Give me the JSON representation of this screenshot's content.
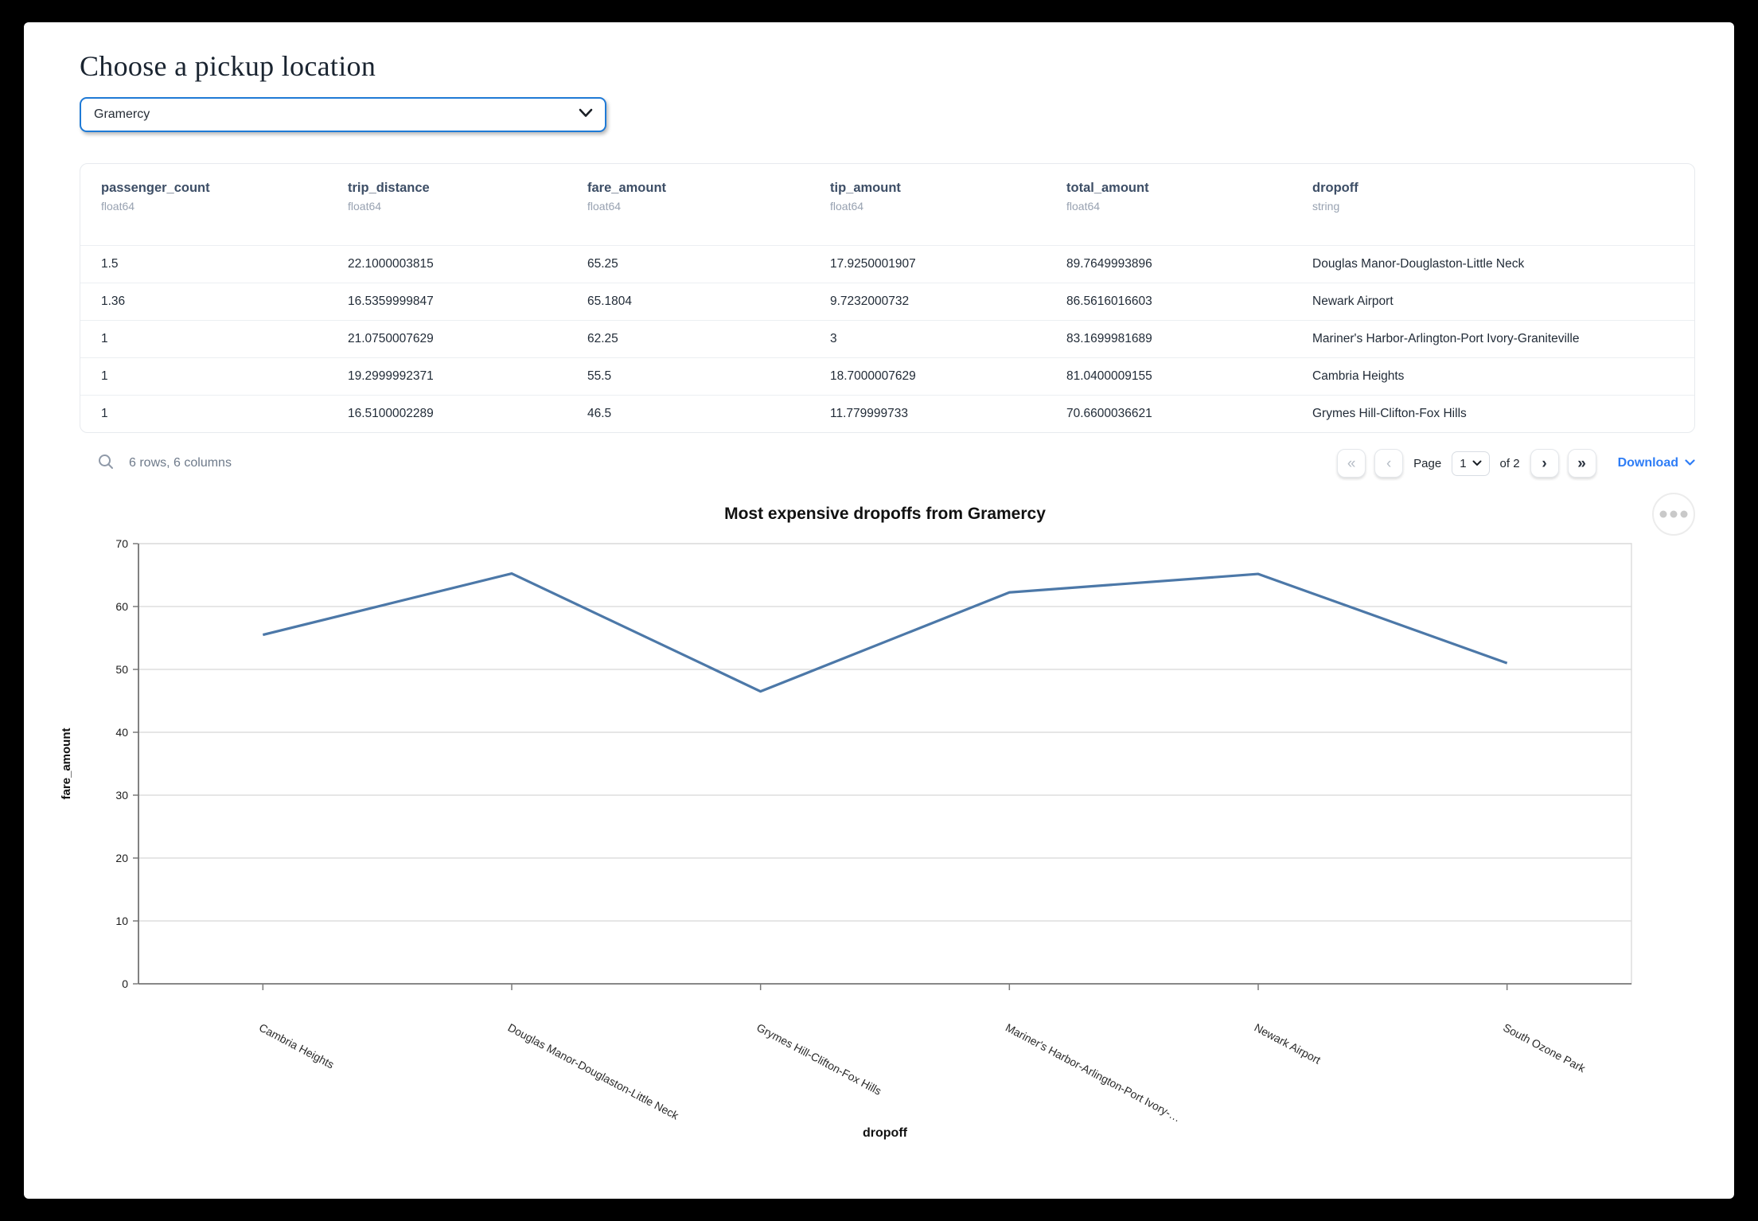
{
  "page": {
    "title": "Choose a pickup location"
  },
  "pickup_select": {
    "value": "Gramercy"
  },
  "table": {
    "columns": [
      {
        "name": "passenger_count",
        "dtype": "float64"
      },
      {
        "name": "trip_distance",
        "dtype": "float64"
      },
      {
        "name": "fare_amount",
        "dtype": "float64"
      },
      {
        "name": "tip_amount",
        "dtype": "float64"
      },
      {
        "name": "total_amount",
        "dtype": "float64"
      },
      {
        "name": "dropoff",
        "dtype": "string"
      }
    ],
    "rows": [
      [
        "1.5",
        "22.1000003815",
        "65.25",
        "17.9250001907",
        "89.7649993896",
        "Douglas Manor-Douglaston-Little Neck"
      ],
      [
        "1.36",
        "16.5359999847",
        "65.1804",
        "9.7232000732",
        "86.5616016603",
        "Newark Airport"
      ],
      [
        "1",
        "21.0750007629",
        "62.25",
        "3",
        "83.1699981689",
        "Mariner's Harbor-Arlington-Port Ivory-Graniteville"
      ],
      [
        "1",
        "19.2999992371",
        "55.5",
        "18.7000007629",
        "81.0400009155",
        "Cambria Heights"
      ],
      [
        "1",
        "16.5100002289",
        "46.5",
        "11.779999733",
        "70.6600036621",
        "Grymes Hill-Clifton-Fox Hills"
      ]
    ],
    "status": "6 rows, 6 columns",
    "pagination": {
      "first_glyph": "«",
      "prev_glyph": "‹",
      "next_glyph": "›",
      "last_glyph": "»",
      "page_label": "Page",
      "current_page": "1",
      "of_label": "of 2"
    },
    "download_label": "Download"
  },
  "chart_data": {
    "type": "line",
    "title": "Most expensive dropoffs from Gramercy",
    "xlabel": "dropoff",
    "ylabel": "fare_amount",
    "categories": [
      "Cambria Heights",
      "Douglas Manor-Douglaston-Little Neck",
      "Grymes Hill-Clifton-Fox Hills",
      "Mariner's Harbor-Arlington-Port Ivory-Graniteville",
      "Newark Airport",
      "South Ozone Park"
    ],
    "tick_labels": [
      "Cambria Heights",
      "Douglas Manor-Douglaston-Little Neck",
      "Grymes Hill-Clifton-Fox Hills",
      "Mariner's Harbor-Arlington-Port Ivory-…",
      "Newark Airport",
      "South Ozone Park"
    ],
    "values": [
      55.5,
      65.25,
      46.5,
      62.25,
      65.1804,
      51
    ],
    "ylim": [
      0,
      70
    ],
    "yticks": [
      0,
      10,
      20,
      30,
      40,
      50,
      60,
      70
    ],
    "grid": true,
    "legend": "none",
    "line_color": "#4c78a8"
  },
  "colors": {
    "accent_blue": "#1f7ad6",
    "link_blue": "#2e7df6",
    "line_blue": "#4c78a8"
  }
}
